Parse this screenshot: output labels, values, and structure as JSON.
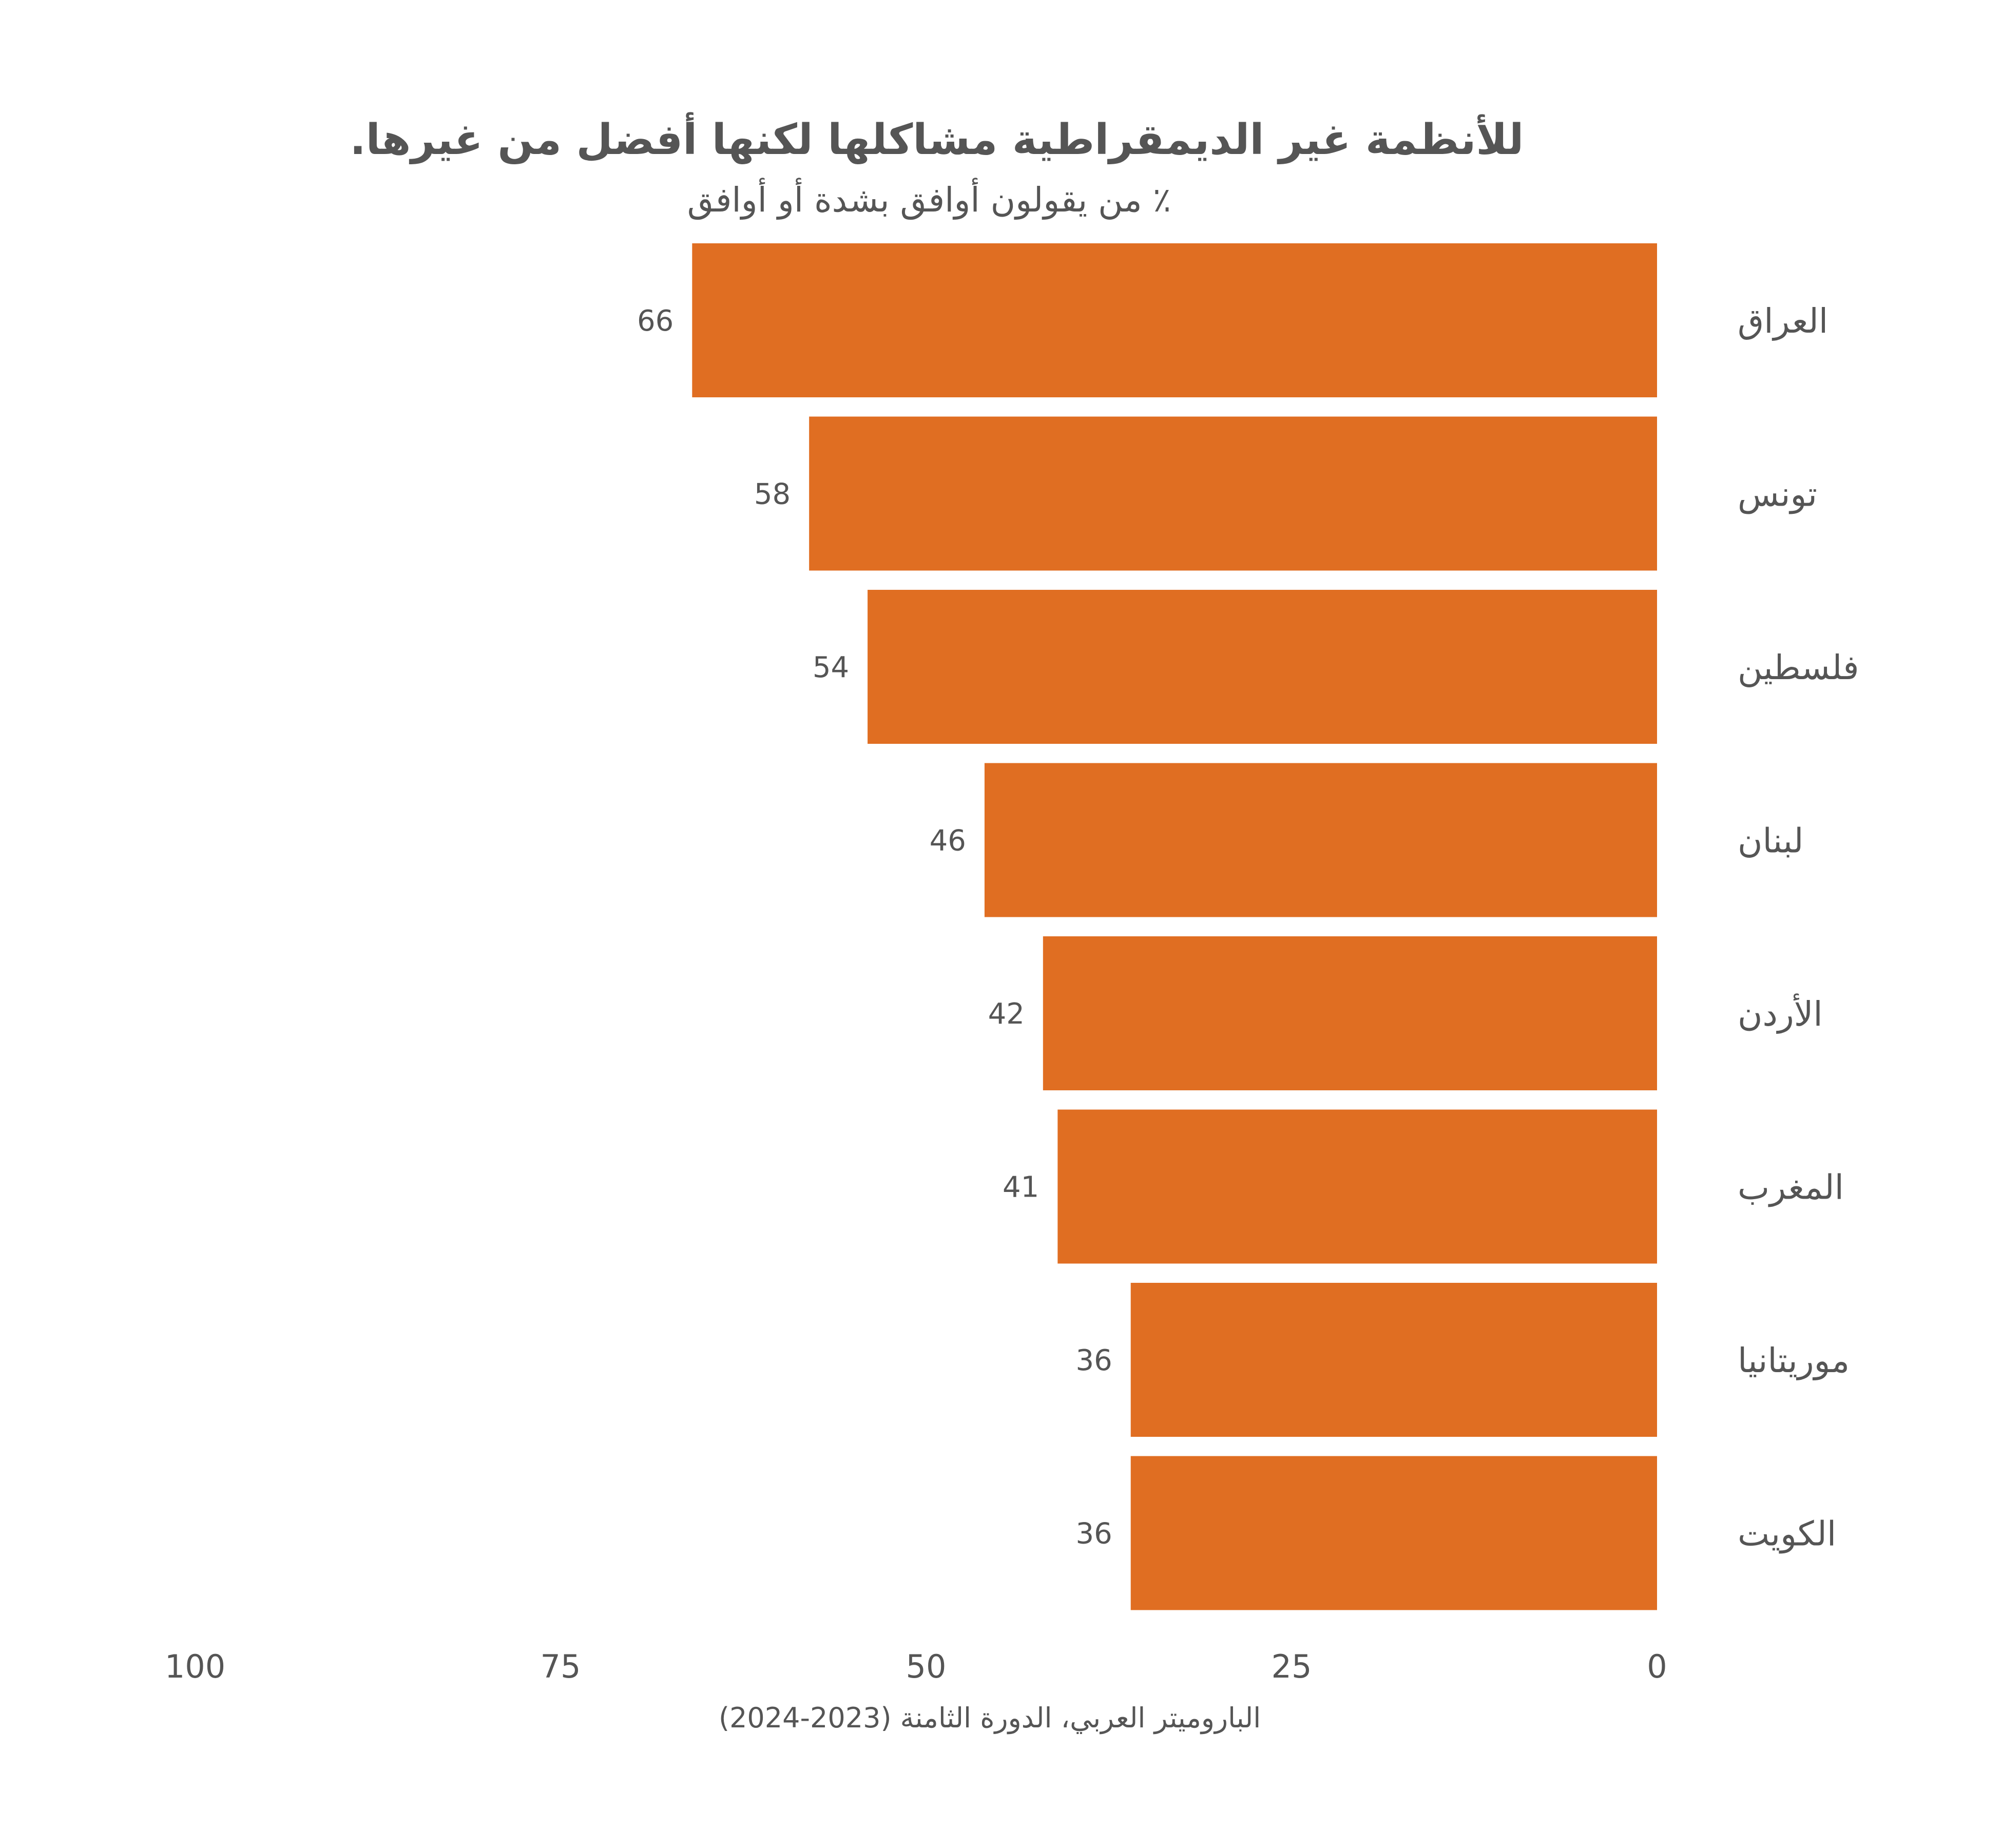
{
  "chart_data": {
    "type": "bar",
    "orientation": "horizontal",
    "direction": "right-to-left",
    "title": "للأنظمة غير الديمقراطية مشاكلها لكنها أفضل من غيرها.",
    "subtitle": "٪ من يقولون أوافق بشدة أو أوافق",
    "categories": [
      "العراق",
      "تونس",
      "فلسطين",
      "لبنان",
      "الأردن",
      "المغرب",
      "موريتانيا",
      "الكويت"
    ],
    "values": [
      66,
      58,
      54,
      46,
      42,
      41,
      36,
      36
    ],
    "xlim": [
      0,
      100
    ],
    "ticks": [
      "0",
      "25",
      "50",
      "75",
      "100"
    ],
    "grid": false,
    "bar_color": "#E06E22",
    "text_color": "#555555",
    "source": "الباروميتر العربي، الدورة الثامنة (2023-2024)"
  }
}
